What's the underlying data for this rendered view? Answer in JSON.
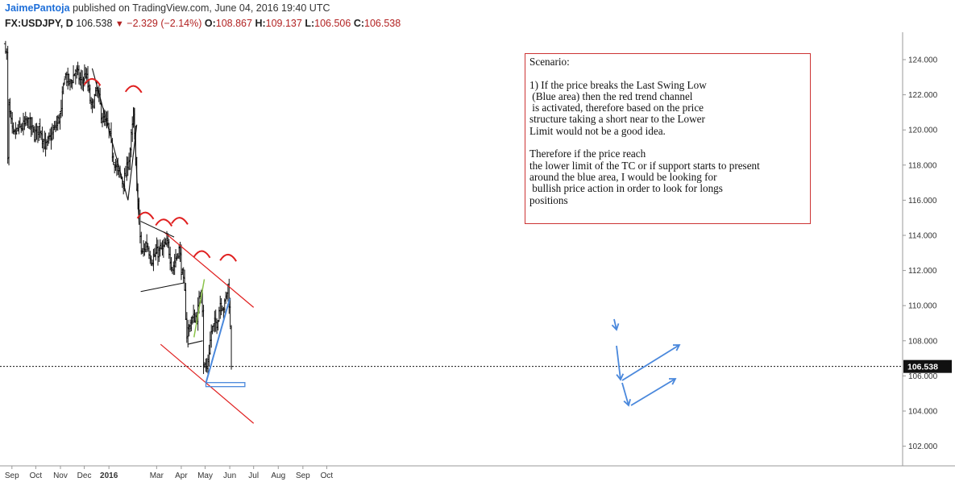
{
  "header": {
    "author": "JaimePantoja",
    "published": "published on TradingView.com, June 04, 2016 19:40 UTC",
    "symbol": "FX:USDJPY, D",
    "last": "106.538",
    "change": "−2.329 (−2.14%)",
    "o_label": "O:",
    "o": "108.867",
    "h_label": "H:",
    "h": "109.137",
    "l_label": "L:",
    "l": "106.506",
    "c_label": "C:",
    "c": "106.538"
  },
  "note": "Scenario:\n\n1) If the price breaks the Last Swing Low\n (Blue area) then the red trend channel\n is activated, therefore based on the price\nstructure taking a short near to the Lower\nLimit would not be a good idea.\n\nTherefore if the price reach\nthe lower limit of the TC or if support starts to present\naround the blue area, I would be looking for\n bullish price action in order to look for longs\npositions",
  "colors": {
    "bars": "#111111",
    "red_annotation": "#e02020",
    "blue_annotation": "#4a88dc",
    "green_annotation": "#8bc34a",
    "price_label_bg": "#111111"
  },
  "chart_data": {
    "type": "ohlc",
    "symbol": "FX:USDJPY",
    "interval": "D",
    "ylim": [
      101,
      125.5
    ],
    "y_ticks": [
      "102.000",
      "104.000",
      "106.000",
      "108.000",
      "110.000",
      "112.000",
      "114.000",
      "116.000",
      "118.000",
      "120.000",
      "122.000",
      "124.000"
    ],
    "x_ticks": [
      "Sep",
      "Oct",
      "Nov",
      "Dec",
      "2016",
      "Mar",
      "Apr",
      "May",
      "Jun",
      "Jul",
      "Aug",
      "Sep",
      "Oct"
    ],
    "last_price": "106.538",
    "close_path": [
      [
        "2015-08-24",
        124.8
      ],
      [
        "2015-08-26",
        124.0
      ],
      [
        "2015-08-27",
        116.8
      ],
      [
        "2015-08-28",
        121.4
      ],
      [
        "2015-09-02",
        119.6
      ],
      [
        "2015-09-08",
        120.0
      ],
      [
        "2015-09-15",
        120.2
      ],
      [
        "2015-09-22",
        120.5
      ],
      [
        "2015-09-29",
        119.7
      ],
      [
        "2015-10-06",
        120.2
      ],
      [
        "2015-10-13",
        119.0
      ],
      [
        "2015-10-20",
        119.6
      ],
      [
        "2015-10-27",
        120.3
      ],
      [
        "2015-11-02",
        121.0
      ],
      [
        "2015-11-06",
        123.2
      ],
      [
        "2015-11-13",
        122.6
      ],
      [
        "2015-11-20",
        123.4
      ],
      [
        "2015-11-27",
        122.7
      ],
      [
        "2015-12-03",
        123.2
      ],
      [
        "2015-12-10",
        121.2
      ],
      [
        "2015-12-17",
        122.3
      ],
      [
        "2015-12-24",
        120.6
      ],
      [
        "2015-12-31",
        120.2
      ],
      [
        "2016-01-06",
        118.5
      ],
      [
        "2016-01-12",
        117.6
      ],
      [
        "2016-01-20",
        117.0
      ],
      [
        "2016-01-27",
        118.6
      ],
      [
        "2016-02-01",
        120.8
      ],
      [
        "2016-02-05",
        116.9
      ],
      [
        "2016-02-11",
        112.8
      ],
      [
        "2016-02-17",
        113.6
      ],
      [
        "2016-02-24",
        112.6
      ],
      [
        "2016-03-01",
        113.0
      ],
      [
        "2016-03-08",
        113.2
      ],
      [
        "2016-03-15",
        113.5
      ],
      [
        "2016-03-21",
        112.1
      ],
      [
        "2016-03-29",
        113.3
      ],
      [
        "2016-04-05",
        110.8
      ],
      [
        "2016-04-08",
        108.4
      ],
      [
        "2016-04-14",
        109.2
      ],
      [
        "2016-04-21",
        109.4
      ],
      [
        "2016-04-27",
        111.4
      ],
      [
        "2016-04-29",
        106.7
      ],
      [
        "2016-05-03",
        106.3
      ],
      [
        "2016-05-09",
        108.6
      ],
      [
        "2016-05-16",
        109.1
      ],
      [
        "2016-05-20",
        110.2
      ],
      [
        "2016-05-25",
        109.9
      ],
      [
        "2016-05-30",
        111.2
      ],
      [
        "2016-06-01",
        109.5
      ],
      [
        "2016-06-03",
        106.538
      ]
    ],
    "annotations": {
      "red_channel_upper": [
        [
          "2016-03-10",
          114.2
        ],
        [
          "2016-07-01",
          109.9
        ]
      ],
      "red_channel_lower": [
        [
          "2016-03-06",
          107.8
        ],
        [
          "2016-07-01",
          103.3
        ]
      ],
      "blue_support_level": 105.5,
      "black_triangle_dec": [
        [
          "2015-12-11",
          123.5
        ],
        [
          "2016-01-25",
          116.0
        ]
      ],
      "black_wedge_feb_mar": {
        "top": 114.8,
        "bottom": 110.8
      },
      "blue_rise_line": [
        [
          "2016-05-02",
          105.6
        ],
        [
          "2016-06-01",
          110.4
        ]
      ],
      "swing_high_marks": [
        "2015-12-11",
        "2016-02-01",
        "2016-02-16",
        "2016-03-10",
        "2016-03-30",
        "2016-04-27",
        "2016-05-30"
      ]
    }
  }
}
